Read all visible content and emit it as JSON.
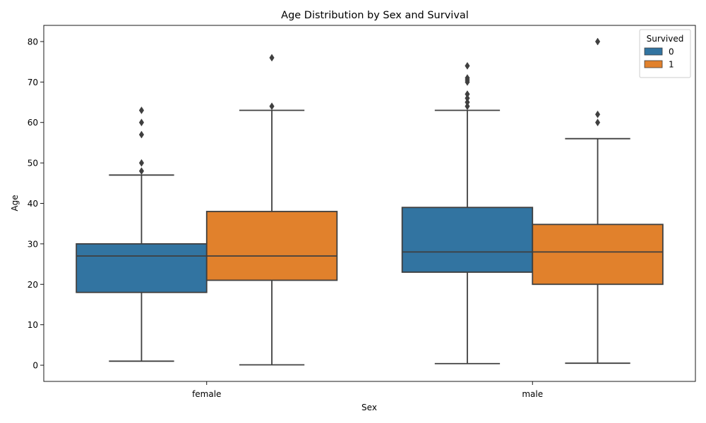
{
  "chart_data": {
    "type": "boxplot",
    "title": "Age Distribution by Sex and Survival",
    "xlabel": "Sex",
    "ylabel": "Age",
    "categories": [
      "female",
      "male"
    ],
    "ylim": [
      -4,
      84
    ],
    "yticks": [
      0,
      10,
      20,
      30,
      40,
      50,
      60,
      70,
      80
    ],
    "grid": false,
    "legend": {
      "title": "Survived",
      "placement": "top-right",
      "entries": [
        "0",
        "1"
      ]
    },
    "series": [
      {
        "name": "0",
        "color": "#3274a1",
        "boxes": [
          {
            "category": "female",
            "whisker_low": 1,
            "q1": 18,
            "median": 27,
            "q3": 30,
            "whisker_high": 47,
            "outliers": [
              48,
              50,
              57,
              60,
              63
            ]
          },
          {
            "category": "male",
            "whisker_low": 0.4,
            "q1": 23,
            "median": 28,
            "q3": 39,
            "whisker_high": 63,
            "outliers": [
              64,
              65,
              66,
              67,
              70,
              70.5,
              71,
              74
            ]
          }
        ]
      },
      {
        "name": "1",
        "color": "#e1812c",
        "boxes": [
          {
            "category": "female",
            "whisker_low": 0.1,
            "q1": 21,
            "median": 27,
            "q3": 38,
            "whisker_high": 63,
            "outliers": [
              64,
              76
            ]
          },
          {
            "category": "male",
            "whisker_low": 0.5,
            "q1": 20,
            "median": 28,
            "q3": 34.8,
            "whisker_high": 56,
            "outliers": [
              60,
              62,
              80
            ]
          }
        ]
      }
    ]
  }
}
